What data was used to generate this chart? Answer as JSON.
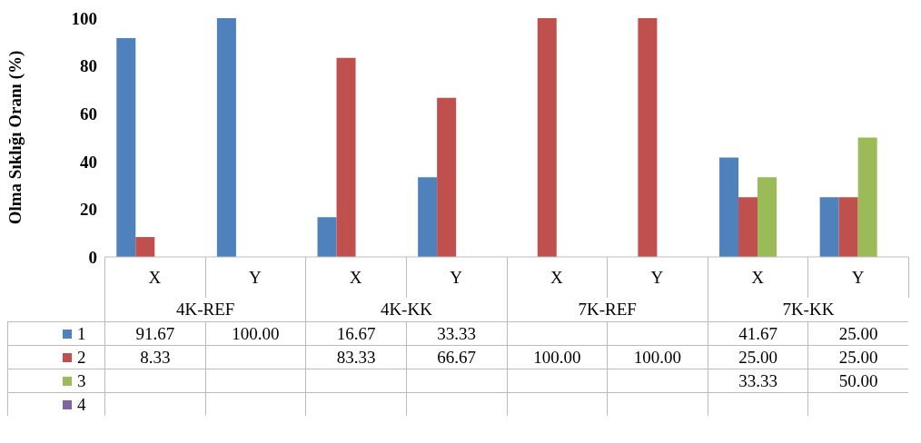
{
  "chart_data": {
    "type": "bar",
    "ylabel": "Olma Sıklığı Oranı (%)",
    "categories": [
      "X",
      "Y",
      "X",
      "Y",
      "X",
      "Y",
      "X",
      "Y"
    ],
    "annotations": [
      "4K-REF",
      "4K-KK",
      "7K-REF",
      "7K-KK"
    ],
    "series": [
      {
        "name": "1",
        "color": "#4f81bd",
        "values": [
          91.67,
          100,
          16.67,
          33.33,
          null,
          null,
          41.67,
          25
        ],
        "value_labels": [
          "91.67",
          "100.00",
          "16.67",
          "33.33",
          null,
          null,
          "41.67",
          "25.00"
        ]
      },
      {
        "name": "2",
        "color": "#c0504d",
        "values": [
          8.33,
          null,
          83.33,
          66.67,
          100,
          100,
          25,
          25
        ],
        "value_labels": [
          "8.33",
          null,
          "83.33",
          "66.67",
          "100.00",
          "100.00",
          "25.00",
          "25.00"
        ]
      },
      {
        "name": "3",
        "color": "#9bbb59",
        "values": [
          null,
          null,
          null,
          null,
          null,
          null,
          33.33,
          50
        ],
        "value_labels": [
          null,
          null,
          null,
          null,
          null,
          null,
          "33.33",
          "50.00"
        ]
      },
      {
        "name": "4",
        "color": "#8064a2",
        "values": [
          null,
          null,
          null,
          null,
          null,
          null,
          null,
          null
        ],
        "value_labels": [
          null,
          null,
          null,
          null,
          null,
          null,
          null,
          null
        ]
      }
    ],
    "ylim": [
      0,
      100
    ],
    "yticks": [
      0,
      20,
      40,
      60,
      80,
      100
    ],
    "legend": "bottom left"
  }
}
